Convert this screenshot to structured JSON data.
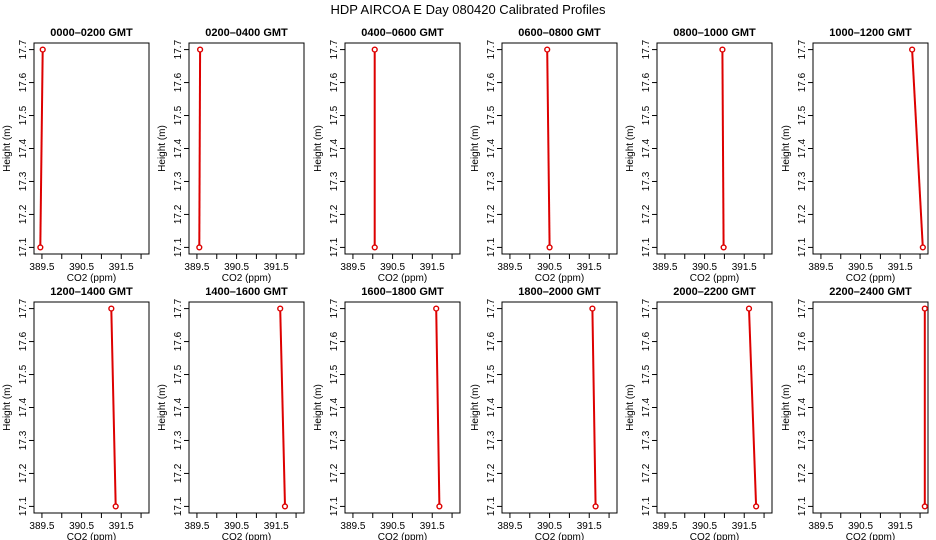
{
  "title": "HDP AIRCOA E  Day 080420  Calibrated Profiles",
  "colors": {
    "profile": "#dd0000",
    "axes": "#000000",
    "background": "#ffffff"
  },
  "chart_data": {
    "type": "line",
    "layout": "small-multiples 2x6",
    "xlabel": "CO2 (ppm)",
    "ylabel": "Height (m)",
    "xlim": [
      389.3,
      392.2
    ],
    "ylim": [
      17.08,
      17.72
    ],
    "xticks": [
      389.5,
      390.5,
      391.5
    ],
    "xticks_unlabeled": [
      390,
      391,
      392
    ],
    "yticks": [
      17.1,
      17.2,
      17.3,
      17.4,
      17.5,
      17.6,
      17.7
    ],
    "grid": false,
    "panels": [
      {
        "title": "0000–0200 GMT",
        "points": [
          [
            389.52,
            17.7
          ],
          [
            389.46,
            17.1
          ]
        ]
      },
      {
        "title": "0200–0400 GMT",
        "points": [
          [
            389.58,
            17.7
          ],
          [
            389.56,
            17.1
          ]
        ]
      },
      {
        "title": "0400–0600 GMT",
        "points": [
          [
            390.05,
            17.7
          ],
          [
            390.05,
            17.1
          ]
        ]
      },
      {
        "title": "0600–0800 GMT",
        "points": [
          [
            390.44,
            17.7
          ],
          [
            390.5,
            17.1
          ]
        ]
      },
      {
        "title": "0800–1000 GMT",
        "points": [
          [
            390.95,
            17.7
          ],
          [
            390.98,
            17.1
          ]
        ]
      },
      {
        "title": "1000–1200 GMT",
        "points": [
          [
            391.8,
            17.7
          ],
          [
            392.07,
            17.1
          ]
        ]
      },
      {
        "title": "1200–1400 GMT",
        "points": [
          [
            391.25,
            17.7
          ],
          [
            391.36,
            17.1
          ]
        ]
      },
      {
        "title": "1400–1600 GMT",
        "points": [
          [
            391.6,
            17.7
          ],
          [
            391.72,
            17.1
          ]
        ]
      },
      {
        "title": "1600–1800 GMT",
        "points": [
          [
            391.6,
            17.7
          ],
          [
            391.68,
            17.1
          ]
        ]
      },
      {
        "title": "1800–2000 GMT",
        "points": [
          [
            391.58,
            17.7
          ],
          [
            391.66,
            17.1
          ]
        ]
      },
      {
        "title": "2000–2200 GMT",
        "points": [
          [
            391.62,
            17.7
          ],
          [
            391.8,
            17.1
          ]
        ]
      },
      {
        "title": "2200–2400 GMT",
        "points": [
          [
            392.12,
            17.7
          ],
          [
            392.12,
            17.1
          ]
        ]
      }
    ]
  }
}
